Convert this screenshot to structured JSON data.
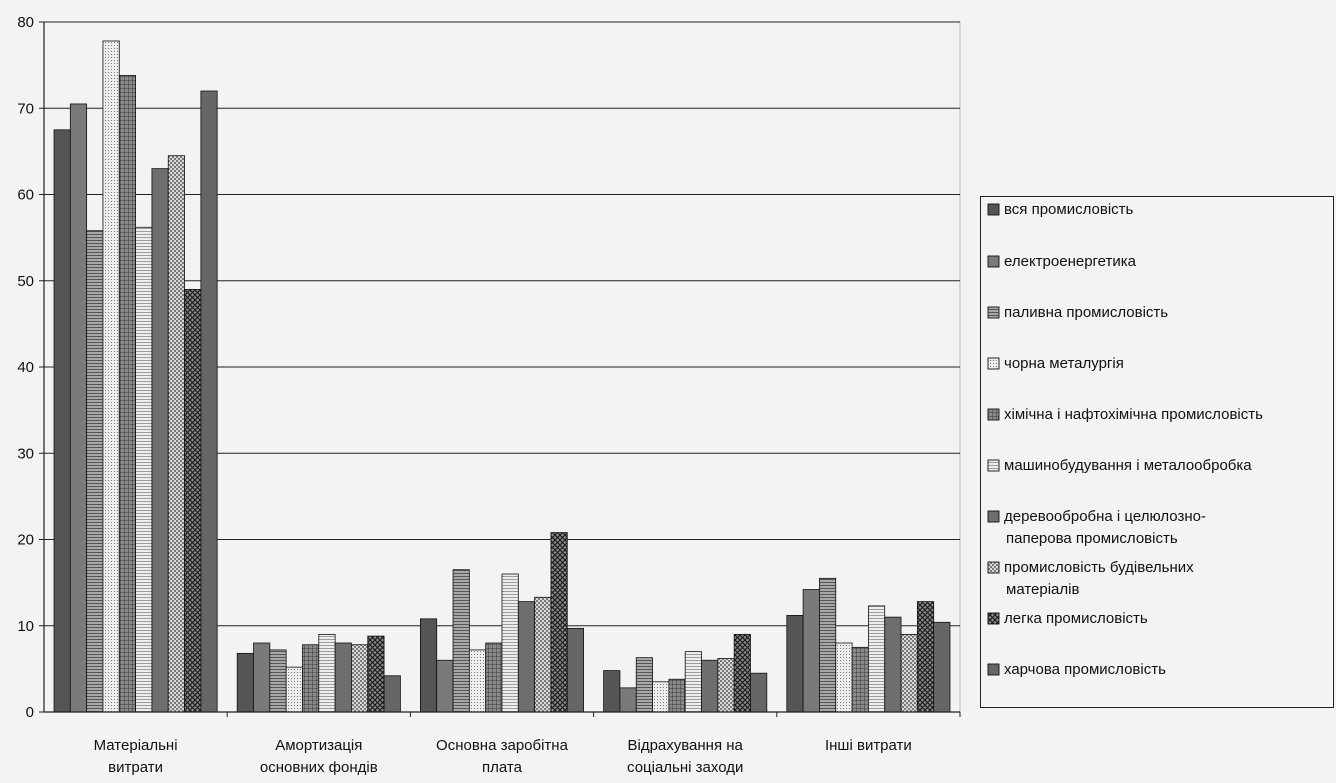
{
  "chart_data": {
    "type": "bar",
    "title": "",
    "xlabel": "",
    "ylabel": "",
    "ylim": [
      0,
      80
    ],
    "yticks": [
      0,
      10,
      20,
      30,
      40,
      50,
      60,
      70,
      80
    ],
    "grid": "horizontal",
    "legend_position": "right",
    "categories": [
      [
        "Матеріальні",
        "витрати"
      ],
      [
        "Амортизація",
        "основних фондів"
      ],
      [
        "Основна заробітна",
        "плата"
      ],
      [
        "Відрахування на",
        "соціальні заходи"
      ],
      [
        "Інші витрати"
      ]
    ],
    "series": [
      {
        "name": "вся промисловість",
        "values": [
          67.5,
          6.8,
          10.8,
          4.8,
          11.2
        ],
        "color": "#555555",
        "pattern": "solid"
      },
      {
        "name": "електроенергетика",
        "values": [
          70.5,
          8.0,
          6.0,
          2.8,
          14.2
        ],
        "color": "#7a7a7a",
        "pattern": "solid"
      },
      {
        "name": "паливна промисловість",
        "values": [
          55.8,
          7.2,
          16.5,
          6.3,
          15.5
        ],
        "color": "#9a9a9a",
        "pattern": "hlines"
      },
      {
        "name": "чорна металургія",
        "values": [
          77.8,
          5.2,
          7.2,
          3.5,
          8.0
        ],
        "color": "#dcdcdc",
        "pattern": "dots"
      },
      {
        "name": "хімічна і нафтохімічна промисловість",
        "values": [
          73.8,
          7.8,
          8.0,
          3.8,
          7.5
        ],
        "color": "#6a6a6a",
        "pattern": "grid"
      },
      {
        "name": "машинобудування і металообробка",
        "values": [
          56.2,
          9.0,
          16.0,
          7.0,
          12.3
        ],
        "color": "#e6e6e6",
        "pattern": "hlines-light"
      },
      {
        "name": "деревообробна і целюлозно-паперова промисловість",
        "values": [
          63.0,
          8.0,
          12.8,
          6.0,
          11.0
        ],
        "color": "#6e6e6e",
        "pattern": "solid"
      },
      {
        "name": "промисловість будівельних матеріалів",
        "values": [
          64.5,
          7.8,
          13.3,
          6.2,
          9.0
        ],
        "color": "#b0b0b0",
        "pattern": "checker"
      },
      {
        "name": "легка промисловість",
        "values": [
          49.0,
          8.8,
          20.8,
          9.0,
          12.8
        ],
        "color": "#4a4a4a",
        "pattern": "crosshatch"
      },
      {
        "name": "харчова промисловість",
        "values": [
          72.0,
          4.2,
          9.7,
          4.5,
          10.4
        ],
        "color": "#666666",
        "pattern": "solid"
      }
    ],
    "legend_labels": [
      [
        "вся промисловість"
      ],
      [
        "електроенергетика"
      ],
      [
        "паливна промисловість"
      ],
      [
        "чорна металургія"
      ],
      [
        "хімічна і нафтохімічна промисловість"
      ],
      [
        "машинобудування і металообробка"
      ],
      [
        "деревообробна і целюлозно-",
        "паперова промисловість"
      ],
      [
        "промисловість будівельних",
        "матеріалів"
      ],
      [
        "легка промисловість"
      ],
      [
        "харчова промисловість"
      ]
    ]
  }
}
